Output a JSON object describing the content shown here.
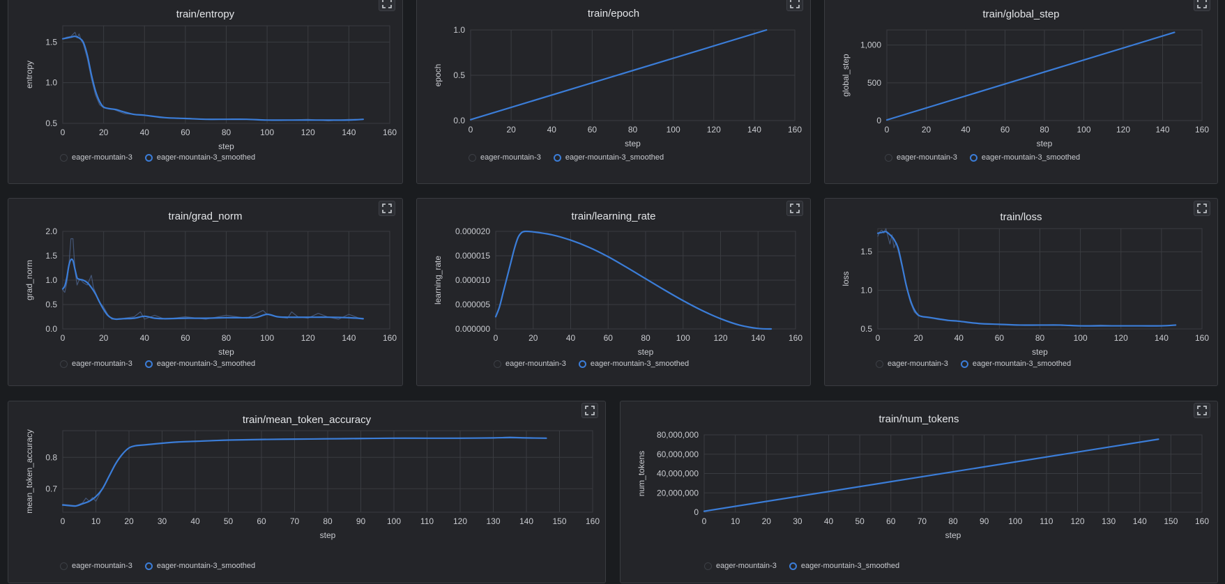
{
  "legend": {
    "raw": "eager-mountain-3",
    "smoothed": "eager-mountain-3_smoothed"
  },
  "colors": {
    "line": "#3b7dd8",
    "raw": "#4a5f85",
    "grid": "#3a3c41",
    "axis": "#c9cbd0",
    "panel": "#242529"
  },
  "chart_data": [
    {
      "id": "entropy",
      "type": "line",
      "title": "train/entropy",
      "xlabel": "step",
      "ylabel": "entropy",
      "xlim": [
        0,
        160
      ],
      "ylim": [
        0.5,
        1.7
      ],
      "xticks": [
        0,
        20,
        40,
        60,
        80,
        100,
        120,
        140,
        160
      ],
      "xtick_labels": [
        "0",
        "20",
        "40",
        "60",
        "80",
        "100",
        "120",
        "140",
        "160"
      ],
      "yticks": [
        0.5,
        1.0,
        1.5
      ],
      "ytick_labels": [
        "0.5",
        "1.0",
        "1.5"
      ],
      "series": [
        {
          "name": "eager-mountain-3",
          "x": [
            0,
            2,
            4,
            6,
            7,
            8,
            9,
            10,
            12,
            14,
            16,
            18,
            20,
            25,
            30,
            40,
            50,
            60,
            70,
            80,
            90,
            100,
            110,
            120,
            130,
            140,
            147
          ],
          "y": [
            1.54,
            1.56,
            1.57,
            1.62,
            1.55,
            1.6,
            1.52,
            1.48,
            1.3,
            1.05,
            0.85,
            0.73,
            0.69,
            0.67,
            0.62,
            0.6,
            0.57,
            0.56,
            0.55,
            0.55,
            0.55,
            0.54,
            0.54,
            0.55,
            0.53,
            0.55,
            0.55
          ]
        },
        {
          "name": "eager-mountain-3_smoothed",
          "x": [
            0,
            2,
            4,
            6,
            8,
            10,
            12,
            14,
            16,
            18,
            20,
            23,
            26,
            30,
            35,
            40,
            50,
            60,
            70,
            80,
            90,
            100,
            110,
            120,
            130,
            140,
            147
          ],
          "y": [
            1.54,
            1.55,
            1.56,
            1.57,
            1.55,
            1.5,
            1.34,
            1.1,
            0.9,
            0.77,
            0.7,
            0.68,
            0.67,
            0.64,
            0.61,
            0.6,
            0.57,
            0.56,
            0.55,
            0.55,
            0.55,
            0.54,
            0.54,
            0.54,
            0.54,
            0.54,
            0.55
          ]
        }
      ]
    },
    {
      "id": "epoch",
      "type": "line",
      "title": "train/epoch",
      "xlabel": "step",
      "ylabel": "epoch",
      "xlim": [
        0,
        160
      ],
      "ylim": [
        0,
        1.0
      ],
      "xticks": [
        0,
        20,
        40,
        60,
        80,
        100,
        120,
        140,
        160
      ],
      "xtick_labels": [
        "0",
        "20",
        "40",
        "60",
        "80",
        "100",
        "120",
        "140",
        "160"
      ],
      "yticks": [
        0,
        0.5,
        1.0
      ],
      "ytick_labels": [
        "0.0",
        "0.5",
        "1.0"
      ],
      "series": [
        {
          "name": "eager-mountain-3",
          "x": [
            0,
            146
          ],
          "y": [
            0.01,
            1.0
          ]
        },
        {
          "name": "eager-mountain-3_smoothed",
          "x": [
            0,
            146
          ],
          "y": [
            0.01,
            1.0
          ]
        }
      ]
    },
    {
      "id": "global_step",
      "type": "line",
      "title": "train/global_step",
      "xlabel": "step",
      "ylabel": "global_step",
      "xlim": [
        0,
        160
      ],
      "ylim": [
        0,
        1200
      ],
      "xticks": [
        0,
        20,
        40,
        60,
        80,
        100,
        120,
        140,
        160
      ],
      "xtick_labels": [
        "0",
        "20",
        "40",
        "60",
        "80",
        "100",
        "120",
        "140",
        "160"
      ],
      "yticks": [
        0,
        500,
        1000
      ],
      "ytick_labels": [
        "0",
        "500",
        "1,000"
      ],
      "series": [
        {
          "name": "eager-mountain-3",
          "x": [
            0,
            146
          ],
          "y": [
            8,
            1168
          ]
        },
        {
          "name": "eager-mountain-3_smoothed",
          "x": [
            0,
            146
          ],
          "y": [
            8,
            1168
          ]
        }
      ]
    },
    {
      "id": "grad_norm",
      "type": "line",
      "title": "train/grad_norm",
      "xlabel": "step",
      "ylabel": "grad_norm",
      "xlim": [
        0,
        160
      ],
      "ylim": [
        0,
        2.0
      ],
      "xticks": [
        0,
        20,
        40,
        60,
        80,
        100,
        120,
        140,
        160
      ],
      "xtick_labels": [
        "0",
        "20",
        "40",
        "60",
        "80",
        "100",
        "120",
        "140",
        "160"
      ],
      "yticks": [
        0,
        0.5,
        1.0,
        1.5,
        2.0
      ],
      "ytick_labels": [
        "0.0",
        "0.5",
        "1.0",
        "1.5",
        "2.0"
      ],
      "series": [
        {
          "name": "eager-mountain-3",
          "x": [
            0,
            1,
            2,
            3,
            4,
            5,
            6,
            7,
            8,
            9,
            10,
            12,
            14,
            15,
            16,
            18,
            20,
            22,
            24,
            26,
            30,
            35,
            38,
            40,
            45,
            50,
            60,
            70,
            80,
            90,
            98,
            100,
            105,
            110,
            112,
            115,
            120,
            125,
            130,
            135,
            140,
            145,
            147
          ],
          "y": [
            0.8,
            0.75,
            0.95,
            1.3,
            1.85,
            1.85,
            1.2,
            0.9,
            1.0,
            1.0,
            0.95,
            0.9,
            1.1,
            0.85,
            0.75,
            0.55,
            0.45,
            0.3,
            0.2,
            0.2,
            0.22,
            0.25,
            0.35,
            0.2,
            0.28,
            0.2,
            0.25,
            0.2,
            0.28,
            0.22,
            0.38,
            0.3,
            0.25,
            0.22,
            0.35,
            0.25,
            0.22,
            0.32,
            0.24,
            0.2,
            0.3,
            0.22,
            0.2
          ]
        },
        {
          "name": "eager-mountain-3_smoothed",
          "x": [
            0,
            1,
            2,
            3,
            4,
            5,
            6,
            7,
            8,
            10,
            12,
            14,
            16,
            18,
            20,
            22,
            24,
            26,
            30,
            35,
            40,
            45,
            50,
            60,
            70,
            80,
            90,
            95,
            100,
            105,
            110,
            120,
            130,
            140,
            147
          ],
          "y": [
            0.82,
            0.88,
            1.05,
            1.3,
            1.42,
            1.4,
            1.22,
            1.05,
            1.02,
            1.0,
            0.95,
            0.85,
            0.72,
            0.55,
            0.4,
            0.28,
            0.22,
            0.2,
            0.21,
            0.22,
            0.26,
            0.22,
            0.21,
            0.22,
            0.22,
            0.23,
            0.23,
            0.24,
            0.3,
            0.25,
            0.24,
            0.24,
            0.24,
            0.23,
            0.21
          ]
        }
      ]
    },
    {
      "id": "learning_rate",
      "type": "line",
      "title": "train/learning_rate",
      "xlabel": "step",
      "ylabel": "learning_rate",
      "xlim": [
        0,
        160
      ],
      "ylim": [
        0,
        2e-05
      ],
      "xticks": [
        0,
        20,
        40,
        60,
        80,
        100,
        120,
        140,
        160
      ],
      "xtick_labels": [
        "0",
        "20",
        "40",
        "60",
        "80",
        "100",
        "120",
        "140",
        "160"
      ],
      "yticks": [
        0,
        5e-06,
        1e-05,
        1.5e-05,
        2e-05
      ],
      "ytick_labels": [
        "0.000000",
        "0.000005",
        "0.000010",
        "0.000015",
        "0.000020"
      ],
      "series": [
        {
          "name": "eager-mountain-3",
          "x": [
            0,
            2,
            4,
            6,
            8,
            10,
            12,
            14,
            16,
            20,
            30,
            40,
            50,
            60,
            70,
            80,
            90,
            100,
            110,
            120,
            130,
            140,
            147
          ],
          "y": [
            2.5e-06,
            4.5e-06,
            7.5e-06,
            1.05e-05,
            1.35e-05,
            1.65e-05,
            1.88e-05,
            1.98e-05,
            2e-05,
            1.99e-05,
            1.93e-05,
            1.82e-05,
            1.67e-05,
            1.48e-05,
            1.26e-05,
            1.03e-05,
            8e-06,
            5.8e-06,
            3.8e-06,
            2.1e-06,
            8e-07,
            1e-07,
            0.0
          ]
        },
        {
          "name": "eager-mountain-3_smoothed",
          "x": [
            0,
            2,
            4,
            6,
            8,
            10,
            12,
            14,
            16,
            20,
            30,
            40,
            50,
            60,
            70,
            80,
            90,
            100,
            110,
            120,
            130,
            140,
            147
          ],
          "y": [
            2.5e-06,
            4.5e-06,
            7.5e-06,
            1.05e-05,
            1.35e-05,
            1.65e-05,
            1.88e-05,
            1.98e-05,
            2e-05,
            1.99e-05,
            1.93e-05,
            1.82e-05,
            1.67e-05,
            1.48e-05,
            1.26e-05,
            1.03e-05,
            8e-06,
            5.8e-06,
            3.8e-06,
            2.1e-06,
            8e-07,
            1e-07,
            0.0
          ]
        }
      ]
    },
    {
      "id": "loss",
      "type": "line",
      "title": "train/loss",
      "xlabel": "step",
      "ylabel": "loss",
      "xlim": [
        0,
        160
      ],
      "ylim": [
        0.5,
        1.8
      ],
      "xticks": [
        0,
        20,
        40,
        60,
        80,
        100,
        120,
        140,
        160
      ],
      "xtick_labels": [
        "0",
        "20",
        "40",
        "60",
        "80",
        "100",
        "120",
        "140",
        "160"
      ],
      "yticks": [
        0.5,
        1.0,
        1.5
      ],
      "ytick_labels": [
        "0.5",
        "1.0",
        "1.5"
      ],
      "series": [
        {
          "name": "eager-mountain-3",
          "x": [
            0,
            1,
            2,
            3,
            4,
            5,
            6,
            7,
            8,
            9,
            10,
            12,
            14,
            16,
            18,
            20,
            22,
            25,
            30,
            40,
            50,
            60,
            70,
            80,
            90,
            100,
            110,
            120,
            130,
            140,
            147
          ],
          "y": [
            1.7,
            1.76,
            1.78,
            1.74,
            1.8,
            1.7,
            1.6,
            1.72,
            1.55,
            1.62,
            1.52,
            1.3,
            1.05,
            0.85,
            0.72,
            0.67,
            0.66,
            0.65,
            0.62,
            0.6,
            0.57,
            0.56,
            0.55,
            0.55,
            0.55,
            0.54,
            0.55,
            0.54,
            0.54,
            0.54,
            0.55
          ]
        },
        {
          "name": "eager-mountain-3_smoothed",
          "x": [
            0,
            2,
            4,
            6,
            8,
            10,
            12,
            14,
            16,
            18,
            20,
            22,
            25,
            30,
            35,
            40,
            50,
            60,
            70,
            80,
            90,
            100,
            110,
            120,
            130,
            140,
            147
          ],
          "y": [
            1.74,
            1.75,
            1.76,
            1.72,
            1.66,
            1.55,
            1.32,
            1.07,
            0.88,
            0.75,
            0.68,
            0.66,
            0.65,
            0.63,
            0.61,
            0.6,
            0.57,
            0.56,
            0.55,
            0.55,
            0.55,
            0.54,
            0.54,
            0.54,
            0.54,
            0.54,
            0.55
          ]
        }
      ]
    },
    {
      "id": "mean_token_accuracy",
      "type": "line",
      "title": "train/mean_token_accuracy",
      "xlabel": "step",
      "ylabel": "mean_token_accuracy",
      "xlim": [
        0,
        160
      ],
      "ylim": [
        0.625,
        0.885
      ],
      "xticks": [
        0,
        10,
        20,
        30,
        40,
        50,
        60,
        70,
        80,
        90,
        100,
        110,
        120,
        130,
        140,
        150,
        160
      ],
      "xtick_labels": [
        "0",
        "10",
        "20",
        "30",
        "40",
        "50",
        "60",
        "70",
        "80",
        "90",
        "100",
        "110",
        "120",
        "130",
        "140",
        "150",
        "160"
      ],
      "yticks": [
        0.7,
        0.8
      ],
      "ytick_labels": [
        "0.7",
        "0.8"
      ],
      "series": [
        {
          "name": "eager-mountain-3",
          "x": [
            0,
            2,
            4,
            6,
            7,
            8,
            9,
            10,
            12,
            14,
            16,
            18,
            20,
            22,
            25,
            30,
            35,
            40,
            50,
            60,
            70,
            80,
            90,
            100,
            110,
            120,
            130,
            135,
            140,
            146
          ],
          "y": [
            0.65,
            0.648,
            0.646,
            0.655,
            0.67,
            0.66,
            0.672,
            0.66,
            0.7,
            0.74,
            0.78,
            0.81,
            0.83,
            0.838,
            0.84,
            0.845,
            0.85,
            0.852,
            0.856,
            0.857,
            0.858,
            0.86,
            0.861,
            0.862,
            0.861,
            0.862,
            0.862,
            0.865,
            0.862,
            0.862
          ]
        },
        {
          "name": "eager-mountain-3_smoothed",
          "x": [
            0,
            2,
            4,
            6,
            8,
            10,
            12,
            14,
            16,
            18,
            20,
            22,
            25,
            30,
            35,
            40,
            50,
            60,
            70,
            80,
            90,
            100,
            110,
            120,
            130,
            135,
            140,
            146
          ],
          "y": [
            0.648,
            0.646,
            0.645,
            0.652,
            0.66,
            0.675,
            0.7,
            0.74,
            0.78,
            0.81,
            0.83,
            0.837,
            0.84,
            0.845,
            0.849,
            0.851,
            0.855,
            0.857,
            0.858,
            0.859,
            0.86,
            0.861,
            0.861,
            0.861,
            0.862,
            0.863,
            0.862,
            0.861
          ]
        }
      ]
    },
    {
      "id": "num_tokens",
      "type": "line",
      "title": "train/num_tokens",
      "xlabel": "step",
      "ylabel": "num_tokens",
      "xlim": [
        0,
        160
      ],
      "ylim": [
        0,
        80000000
      ],
      "xticks": [
        0,
        10,
        20,
        30,
        40,
        50,
        60,
        70,
        80,
        90,
        100,
        110,
        120,
        130,
        140,
        150,
        160
      ],
      "xtick_labels": [
        "0",
        "10",
        "20",
        "30",
        "40",
        "50",
        "60",
        "70",
        "80",
        "90",
        "100",
        "110",
        "120",
        "130",
        "140",
        "150",
        "160"
      ],
      "yticks": [
        0,
        20000000,
        40000000,
        60000000,
        80000000
      ],
      "ytick_labels": [
        "0",
        "20,000,000",
        "40,000,000",
        "60,000,000",
        "80,000,000"
      ],
      "series": [
        {
          "name": "eager-mountain-3",
          "x": [
            0,
            146
          ],
          "y": [
            1000000,
            75500000
          ]
        },
        {
          "name": "eager-mountain-3_smoothed",
          "x": [
            0,
            146
          ],
          "y": [
            1000000,
            75500000
          ]
        }
      ]
    }
  ]
}
